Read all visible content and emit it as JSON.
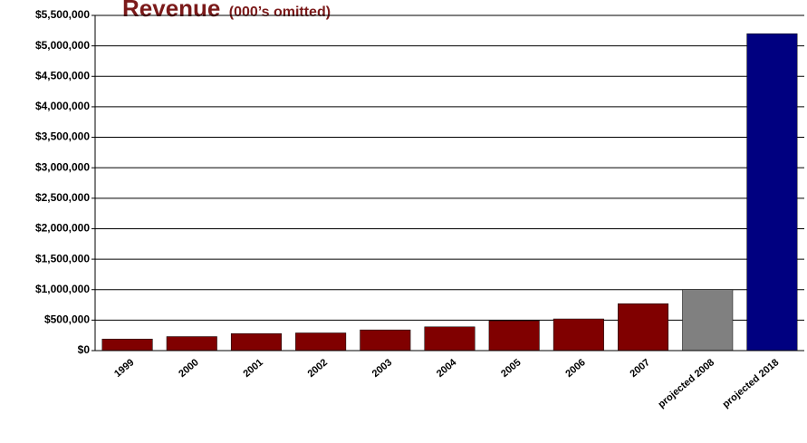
{
  "chart_data": {
    "type": "bar",
    "title": "Revenue",
    "subtitle": "(000’s omitted)",
    "categories": [
      "1999",
      "2000",
      "2001",
      "2002",
      "2003",
      "2004",
      "2005",
      "2006",
      "2007",
      "projected 2008",
      "projected 2018"
    ],
    "values": [
      190000,
      230000,
      280000,
      290000,
      340000,
      390000,
      490000,
      520000,
      770000,
      1000000,
      5200000
    ],
    "colors": [
      "#800000",
      "#800000",
      "#800000",
      "#800000",
      "#800000",
      "#800000",
      "#800000",
      "#800000",
      "#800000",
      "#808080",
      "#000080"
    ],
    "ylim": [
      0,
      5500000
    ],
    "yticks": [
      {
        "value": 0,
        "label": "$0"
      },
      {
        "value": 500000,
        "label": "$500,000"
      },
      {
        "value": 1000000,
        "label": "$1,000,000"
      },
      {
        "value": 1500000,
        "label": "$1,500,000"
      },
      {
        "value": 2000000,
        "label": "$2,000,000"
      },
      {
        "value": 2500000,
        "label": "$2,500,000"
      },
      {
        "value": 3000000,
        "label": "$3,000,000"
      },
      {
        "value": 3500000,
        "label": "$3,500,000"
      },
      {
        "value": 4000000,
        "label": "$4,000,000"
      },
      {
        "value": 4500000,
        "label": "$4,500,000"
      },
      {
        "value": 5000000,
        "label": "$5,000,000"
      },
      {
        "value": 5500000,
        "label": "$5,500,000"
      }
    ],
    "grid": true
  }
}
